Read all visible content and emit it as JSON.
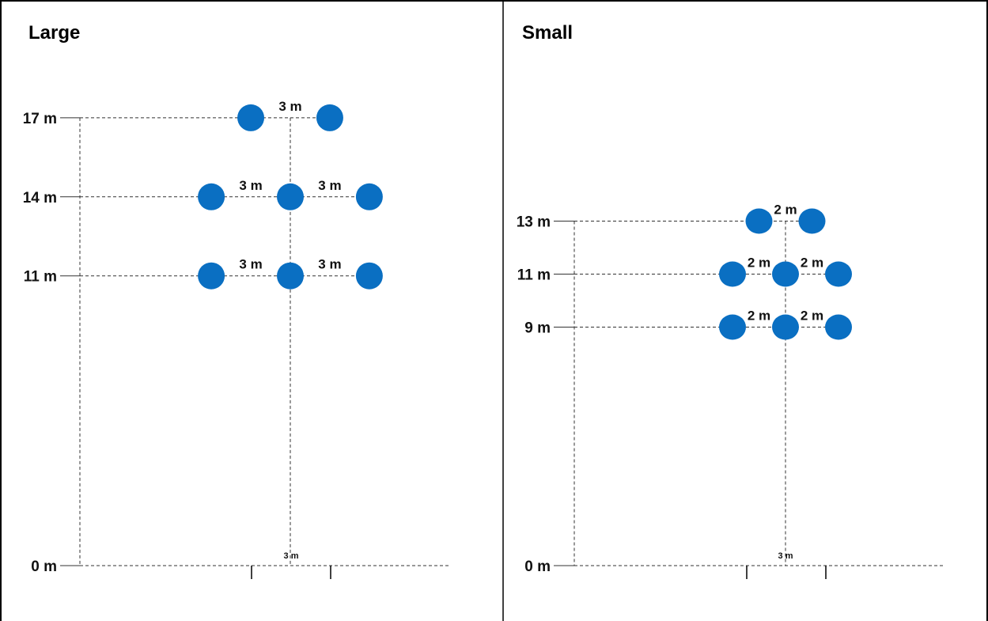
{
  "colors": {
    "dot": "#0a6fc2",
    "line": "#333333",
    "border": "#000000"
  },
  "panels": [
    {
      "title": "Large",
      "levels": [
        {
          "label": "17 m",
          "value": 17,
          "dots": [
            -1.5,
            1.5
          ],
          "spacing_labels": [
            "3 m"
          ]
        },
        {
          "label": "14 m",
          "value": 14,
          "dots": [
            -3,
            0,
            3
          ],
          "spacing_labels": [
            "3 m",
            "3 m"
          ]
        },
        {
          "label": "11 m",
          "value": 11,
          "dots": [
            -3,
            0,
            3
          ],
          "spacing_labels": [
            "3 m",
            "3 m"
          ]
        },
        {
          "label": "0 m",
          "value": 0,
          "dots": [],
          "spacing_labels": []
        }
      ],
      "base_spacing_label": "3 m"
    },
    {
      "title": "Small",
      "levels": [
        {
          "label": "13 m",
          "value": 13,
          "dots": [
            -1,
            1
          ],
          "spacing_labels": [
            "2 m"
          ]
        },
        {
          "label": "11 m",
          "value": 11,
          "dots": [
            -2,
            0,
            2
          ],
          "spacing_labels": [
            "2 m",
            "2 m"
          ]
        },
        {
          "label": "9 m",
          "value": 9,
          "dots": [
            -2,
            0,
            2
          ],
          "spacing_labels": [
            "2  m",
            "2 m"
          ]
        },
        {
          "label": "0 m",
          "value": 0,
          "dots": [],
          "spacing_labels": []
        }
      ],
      "base_spacing_label": "3 m"
    }
  ]
}
